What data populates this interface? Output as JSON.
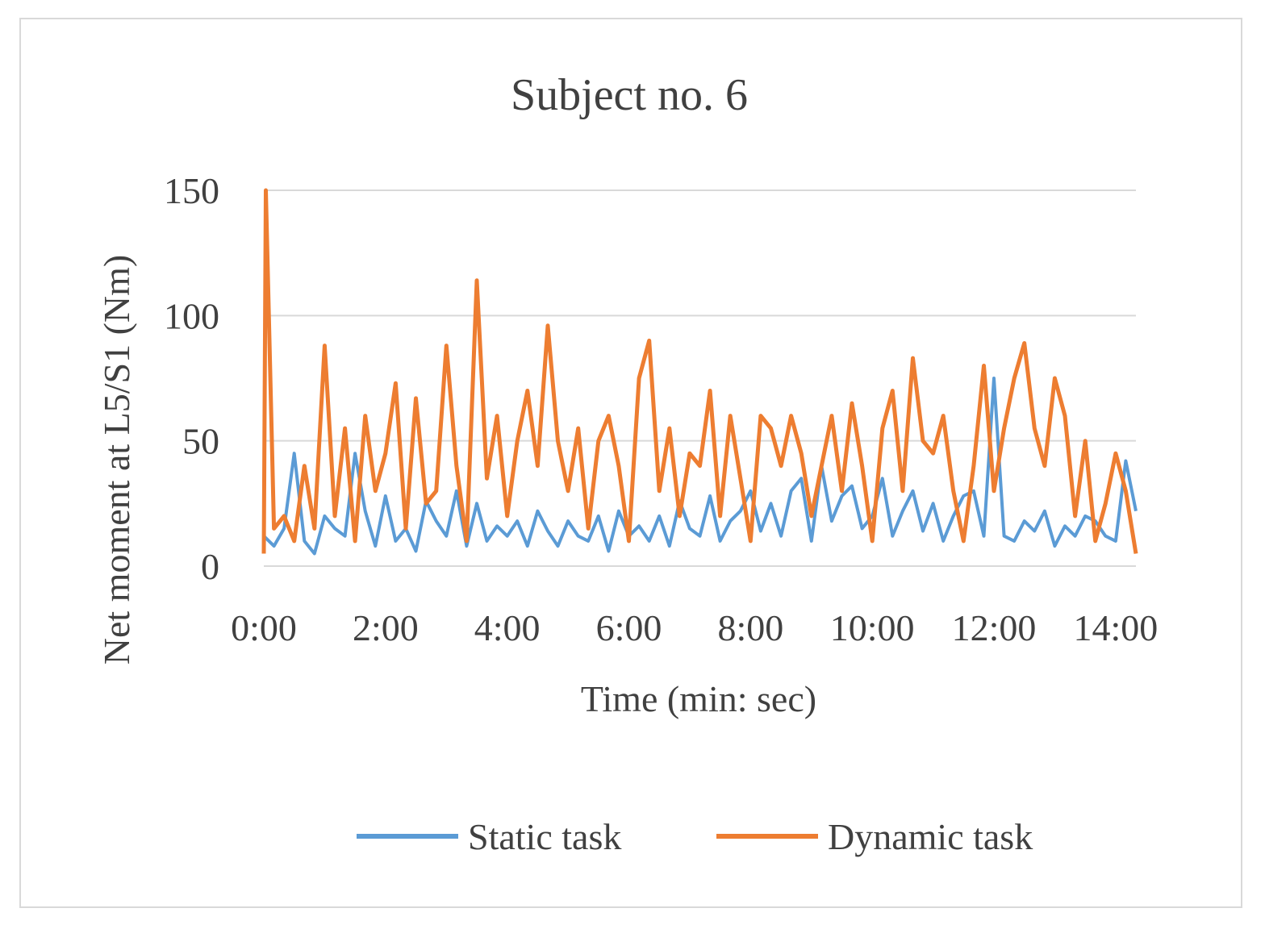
{
  "chart_data": {
    "type": "line",
    "title": "Subject no. 6",
    "xlabel": "Time (min: sec)",
    "ylabel": "Net moment at L5/S1 (Nm)",
    "xlim": [
      0,
      860
    ],
    "ylim": [
      0,
      150
    ],
    "grid": true,
    "legend_position": "bottom",
    "x_tick_labels": [
      "0:00",
      "2:00",
      "4:00",
      "6:00",
      "8:00",
      "10:00",
      "12:00",
      "14:00"
    ],
    "x_tick_values": [
      0,
      120,
      240,
      360,
      480,
      600,
      720,
      840
    ],
    "y_tick_labels": [
      "0",
      "50",
      "100",
      "150"
    ],
    "y_tick_values": [
      0,
      50,
      100,
      150
    ],
    "colors": {
      "static": "#5b9bd5",
      "dynamic": "#ed7d31",
      "grid": "#d9d9d9",
      "text": "#404040"
    },
    "series": [
      {
        "name": "Static task",
        "color": "#5b9bd5",
        "x": [
          0,
          10,
          20,
          30,
          40,
          50,
          60,
          70,
          80,
          90,
          100,
          110,
          120,
          130,
          140,
          150,
          160,
          170,
          180,
          190,
          200,
          210,
          220,
          230,
          240,
          250,
          260,
          270,
          280,
          290,
          300,
          310,
          320,
          330,
          340,
          350,
          360,
          370,
          380,
          390,
          400,
          410,
          420,
          430,
          440,
          450,
          460,
          470,
          480,
          490,
          500,
          510,
          520,
          530,
          540,
          550,
          560,
          570,
          580,
          590,
          600,
          610,
          620,
          630,
          640,
          650,
          660,
          670,
          680,
          690,
          700,
          710,
          720,
          730,
          740,
          750,
          760,
          770,
          780,
          790,
          800,
          810,
          820,
          830,
          840,
          850,
          860
        ],
        "values": [
          12,
          8,
          15,
          45,
          10,
          5,
          20,
          15,
          12,
          45,
          22,
          8,
          28,
          10,
          15,
          6,
          26,
          18,
          12,
          30,
          8,
          25,
          10,
          16,
          12,
          18,
          8,
          22,
          14,
          8,
          18,
          12,
          10,
          20,
          6,
          22,
          12,
          16,
          10,
          20,
          8,
          26,
          15,
          12,
          28,
          10,
          18,
          22,
          30,
          14,
          25,
          12,
          30,
          35,
          10,
          40,
          18,
          28,
          32,
          15,
          20,
          35,
          12,
          22,
          30,
          14,
          25,
          10,
          20,
          28,
          30,
          12,
          75,
          12,
          10,
          18,
          14,
          22,
          8,
          16,
          12,
          20,
          18,
          12,
          10,
          42,
          22
        ]
      },
      {
        "name": "Dynamic task",
        "color": "#ed7d31",
        "x": [
          0,
          2,
          10,
          20,
          30,
          40,
          50,
          60,
          70,
          80,
          90,
          100,
          110,
          120,
          130,
          140,
          150,
          160,
          170,
          180,
          190,
          200,
          210,
          220,
          230,
          240,
          250,
          260,
          270,
          280,
          290,
          300,
          310,
          320,
          330,
          340,
          350,
          360,
          370,
          380,
          390,
          400,
          410,
          420,
          430,
          440,
          450,
          460,
          470,
          480,
          490,
          500,
          510,
          520,
          530,
          540,
          550,
          560,
          570,
          580,
          590,
          600,
          610,
          620,
          630,
          640,
          650,
          660,
          670,
          680,
          690,
          700,
          710,
          720,
          730,
          740,
          750,
          760,
          770,
          780,
          790,
          800,
          810,
          820,
          830,
          840,
          850,
          860
        ],
        "values": [
          5,
          150,
          15,
          20,
          10,
          40,
          15,
          88,
          20,
          55,
          10,
          60,
          30,
          45,
          73,
          15,
          67,
          25,
          30,
          88,
          40,
          10,
          114,
          35,
          60,
          20,
          50,
          70,
          40,
          96,
          50,
          30,
          55,
          15,
          50,
          60,
          40,
          10,
          75,
          90,
          30,
          55,
          20,
          45,
          40,
          70,
          20,
          60,
          35,
          10,
          60,
          55,
          40,
          60,
          45,
          20,
          40,
          60,
          30,
          65,
          40,
          10,
          55,
          70,
          30,
          83,
          50,
          45,
          60,
          30,
          10,
          40,
          80,
          30,
          55,
          75,
          89,
          55,
          40,
          75,
          60,
          20,
          50,
          10,
          25,
          45,
          30,
          5
        ]
      }
    ]
  }
}
